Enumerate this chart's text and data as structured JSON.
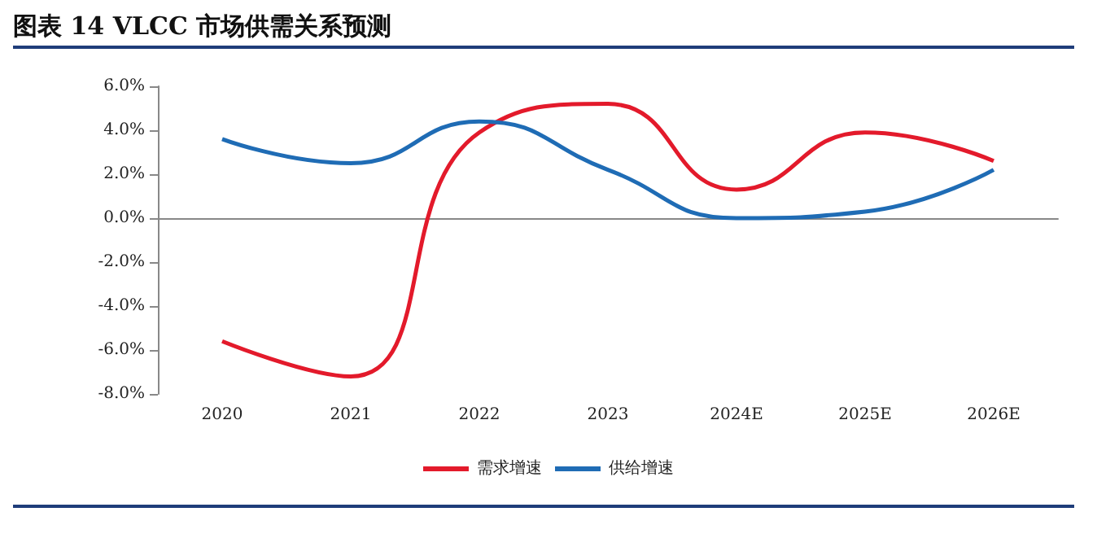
{
  "chart_data": {
    "type": "line",
    "title": "图表 14 VLCC 市场供需关系预测",
    "categories": [
      "2020",
      "2021",
      "2022",
      "2023",
      "2024E",
      "2025E",
      "2026E"
    ],
    "series": [
      {
        "name": "需求增速",
        "color": "#e31a2b",
        "values": [
          -5.6,
          -7.2,
          3.9,
          5.2,
          1.3,
          3.9,
          2.6
        ]
      },
      {
        "name": "供给增速",
        "color": "#1f6cb5",
        "values": [
          3.6,
          2.5,
          4.4,
          2.2,
          0.0,
          0.3,
          2.2
        ]
      }
    ],
    "ylim": [
      -8,
      6
    ],
    "yticks": [
      {
        "value": -8,
        "label": "-8.0%"
      },
      {
        "value": -6,
        "label": "-6.0%"
      },
      {
        "value": -4,
        "label": "-4.0%"
      },
      {
        "value": -2,
        "label": "-2.0%"
      },
      {
        "value": 0,
        "label": "0.0%"
      },
      {
        "value": 2,
        "label": "2.0%"
      },
      {
        "value": 4,
        "label": "4.0%"
      },
      {
        "value": 6,
        "label": "6.0%"
      }
    ],
    "legend": "bottom",
    "marker": "none",
    "line_style": "solid"
  }
}
